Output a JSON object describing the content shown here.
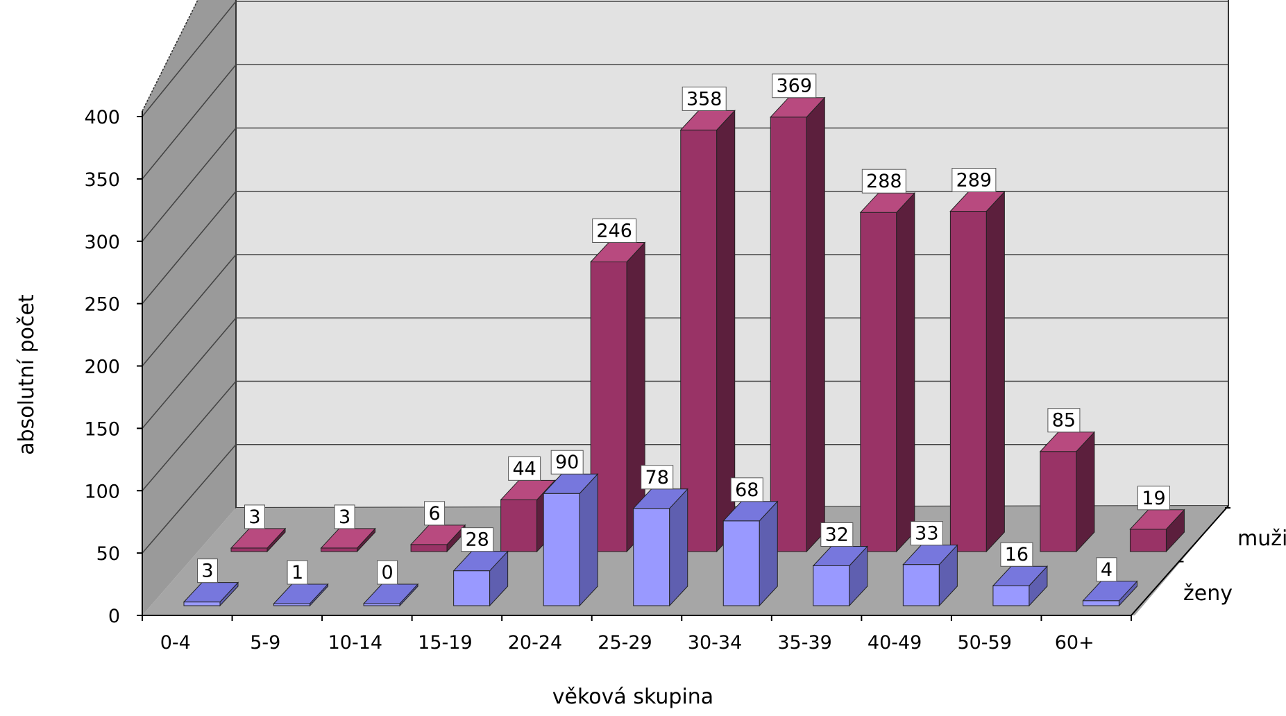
{
  "chart_data": {
    "type": "bar",
    "variant": "3d-column",
    "title": "",
    "xlabel": "věková skupina",
    "ylabel": "absolutní počet",
    "ylim": [
      0,
      400
    ],
    "yticks": [
      0,
      50,
      100,
      150,
      200,
      250,
      300,
      350,
      400
    ],
    "categories": [
      "0-4",
      "5-9",
      "10-14",
      "15-19",
      "20-24",
      "25-29",
      "30-34",
      "35-39",
      "40-49",
      "50-59",
      "60+"
    ],
    "series": [
      {
        "name": "ženy",
        "color": "#9999ff",
        "values": [
          3,
          1,
          0,
          28,
          90,
          78,
          68,
          32,
          33,
          16,
          4
        ]
      },
      {
        "name": "muži",
        "color": "#993366",
        "values": [
          3,
          3,
          6,
          44,
          246,
          358,
          369,
          288,
          289,
          85,
          19
        ]
      }
    ],
    "grid": true,
    "legend": "depth-axis-right",
    "data_labels": true
  }
}
